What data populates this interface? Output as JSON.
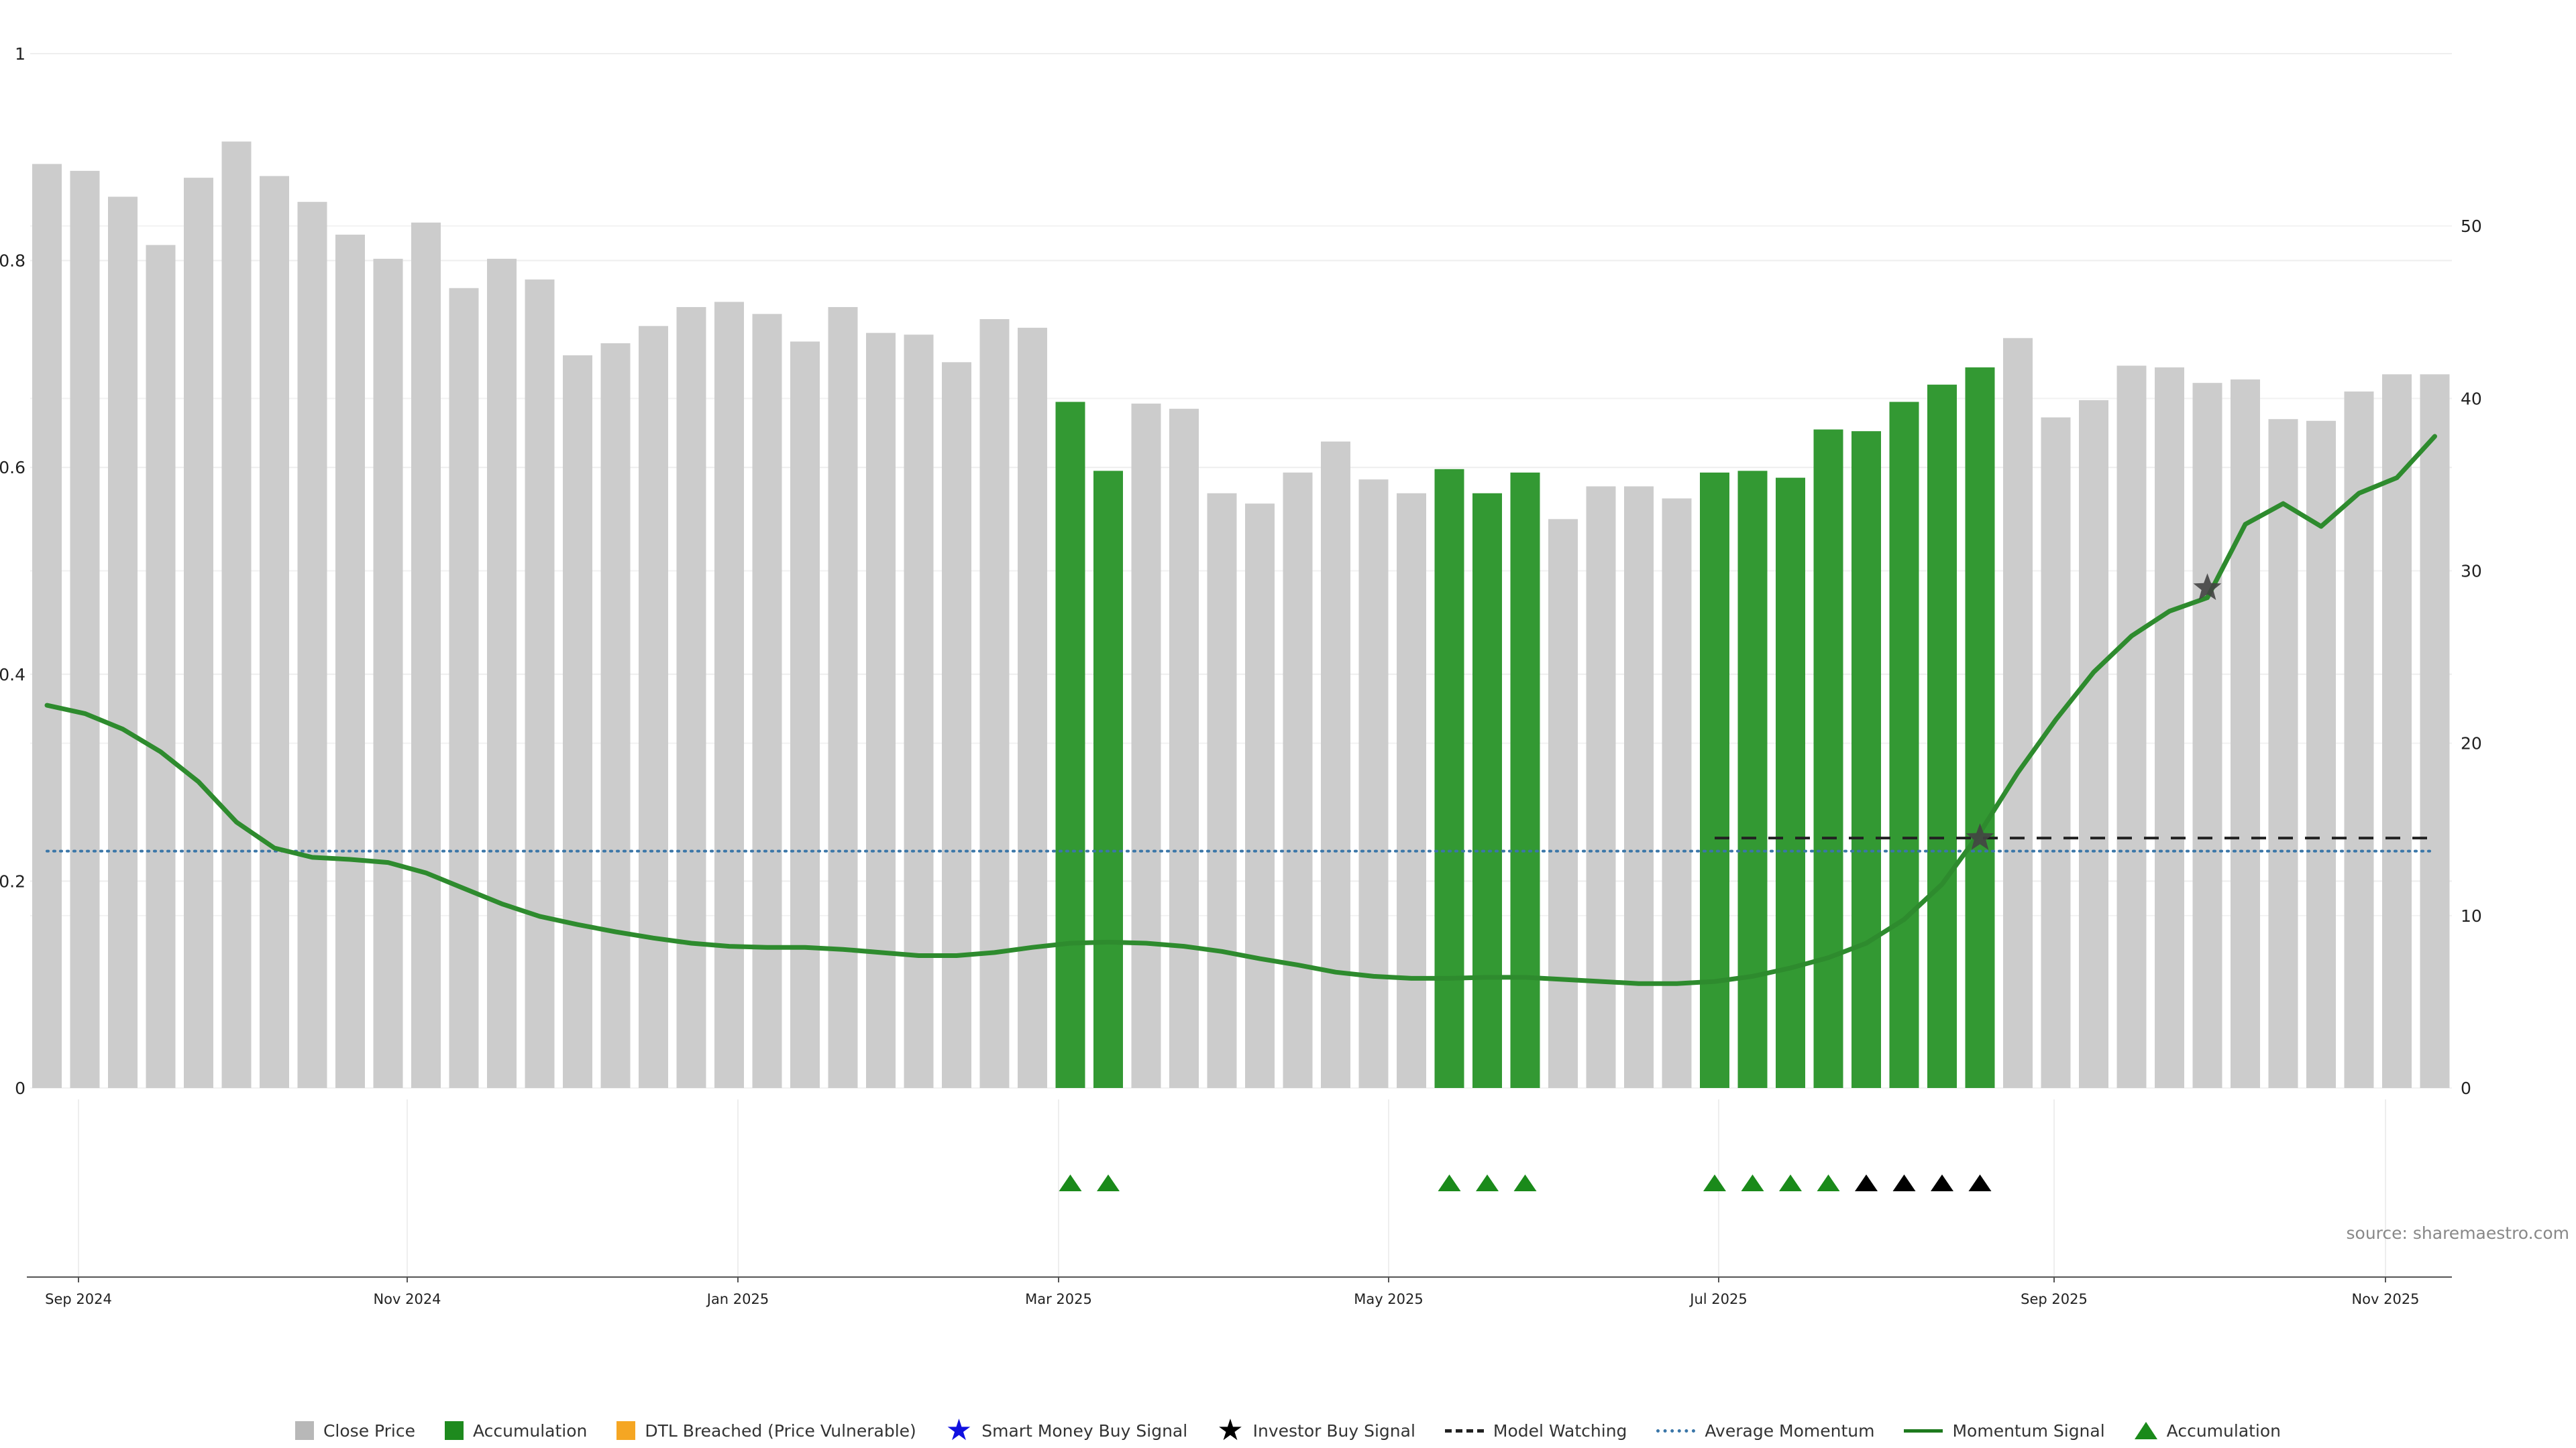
{
  "chart_data": {
    "type": "bar",
    "x_ticks": [
      "Sep 2024",
      "Nov 2024",
      "Jan 2025",
      "Mar 2025",
      "May 2025",
      "Jul 2025",
      "Sep 2025",
      "Nov 2025"
    ],
    "left_axis": {
      "ticks": [
        "0",
        "0.2",
        "0.4",
        "0.6",
        "0.8",
        "1"
      ],
      "ylim": [
        0,
        1
      ]
    },
    "right_axis": {
      "ticks": [
        "0",
        "10",
        "20",
        "30",
        "40",
        "50"
      ],
      "ylim": [
        0,
        60
      ]
    },
    "series": [
      {
        "name": "Close Price",
        "axis": "right",
        "values": [
          53.6,
          53.2,
          51.7,
          48.9,
          52.8,
          54.9,
          52.9,
          51.4,
          49.5,
          48.1,
          50.2,
          46.4,
          48.1,
          46.9,
          42.5,
          43.2,
          44.2,
          45.3,
          45.6,
          44.9,
          43.3,
          45.3,
          43.8,
          43.7,
          42.1,
          44.6,
          44.1,
          39.8,
          35.8,
          39.7,
          39.4,
          34.5,
          33.9,
          35.7,
          37.5,
          35.3,
          34.5,
          35.9,
          34.5,
          35.7,
          33.0,
          34.9,
          34.9,
          34.2,
          35.7,
          35.8,
          35.4,
          38.2,
          38.1,
          39.8,
          40.8,
          41.8,
          43.5,
          38.9,
          39.9,
          41.9,
          41.8,
          40.9,
          41.1,
          38.8,
          38.7,
          40.4,
          41.4,
          41.4
        ],
        "accumulation_flags": [
          0,
          0,
          0,
          0,
          0,
          0,
          0,
          0,
          0,
          0,
          0,
          0,
          0,
          0,
          0,
          0,
          0,
          0,
          0,
          0,
          0,
          0,
          0,
          0,
          0,
          0,
          0,
          1,
          1,
          0,
          0,
          0,
          0,
          0,
          0,
          0,
          0,
          1,
          1,
          1,
          0,
          0,
          0,
          0,
          1,
          1,
          1,
          1,
          1,
          1,
          1,
          1,
          0,
          0,
          0,
          0,
          0,
          0,
          0,
          0,
          0,
          0,
          0,
          0
        ]
      },
      {
        "name": "Momentum Signal",
        "axis": "left",
        "values": [
          0.37,
          0.362,
          0.347,
          0.325,
          0.296,
          0.257,
          0.232,
          0.223,
          0.221,
          0.218,
          0.208,
          0.193,
          0.178,
          0.166,
          0.158,
          0.151,
          0.145,
          0.14,
          0.137,
          0.136,
          0.136,
          0.134,
          0.131,
          0.128,
          0.128,
          0.131,
          0.136,
          0.14,
          0.141,
          0.14,
          0.137,
          0.132,
          0.125,
          0.119,
          0.112,
          0.108,
          0.106,
          0.106,
          0.107,
          0.107,
          0.105,
          0.103,
          0.101,
          0.101,
          0.103,
          0.108,
          0.116,
          0.126,
          0.14,
          0.163,
          0.197,
          0.247,
          0.305,
          0.356,
          0.402,
          0.437,
          0.461,
          0.474,
          0.545,
          0.565,
          0.543,
          0.575,
          0.59,
          0.63
        ]
      },
      {
        "name": "Average Momentum",
        "axis": "left",
        "value": 0.229
      },
      {
        "name": "Model Watching",
        "axis": "right",
        "value": 14.5,
        "from_index": 44
      }
    ],
    "investor_buy_signals": [
      {
        "index": 51,
        "value": 14.5
      },
      {
        "index": 57,
        "value": 29.0
      }
    ],
    "accumulation_markers": [
      27,
      28,
      37,
      38,
      39,
      44,
      45,
      46,
      47
    ],
    "investor_markers": [
      48,
      49,
      50,
      51
    ],
    "source": "source: sharemaestro.com",
    "legend": [
      {
        "label": "Close Price",
        "kind": "box",
        "color": "#b8b8b8"
      },
      {
        "label": "Accumulation",
        "kind": "box",
        "color": "#1e8a1e"
      },
      {
        "label": "DTL Breached (Price Vulnerable)",
        "kind": "box",
        "color": "#f5a623"
      },
      {
        "label": "Smart Money Buy Signal",
        "kind": "star",
        "color": "#1010e0"
      },
      {
        "label": "Investor Buy Signal",
        "kind": "star",
        "color": "#000000"
      },
      {
        "label": "Model Watching",
        "kind": "dash",
        "color": "#222222"
      },
      {
        "label": "Average Momentum",
        "kind": "dot",
        "color": "#3a76a8"
      },
      {
        "label": "Momentum Signal",
        "kind": "line",
        "color": "#1e7a1e"
      },
      {
        "label": "Accumulation",
        "kind": "tri",
        "color": "#1a8a1a"
      }
    ],
    "colors": {
      "close_bar": "#cccccc",
      "accum_bar": "#339933",
      "momentum": "#2e8b2e",
      "avg": "#3a76a8",
      "watch": "#222222",
      "tri_green": "#1a8a1a",
      "tri_black": "#000000",
      "star": "#444444",
      "source": "#888888"
    }
  }
}
